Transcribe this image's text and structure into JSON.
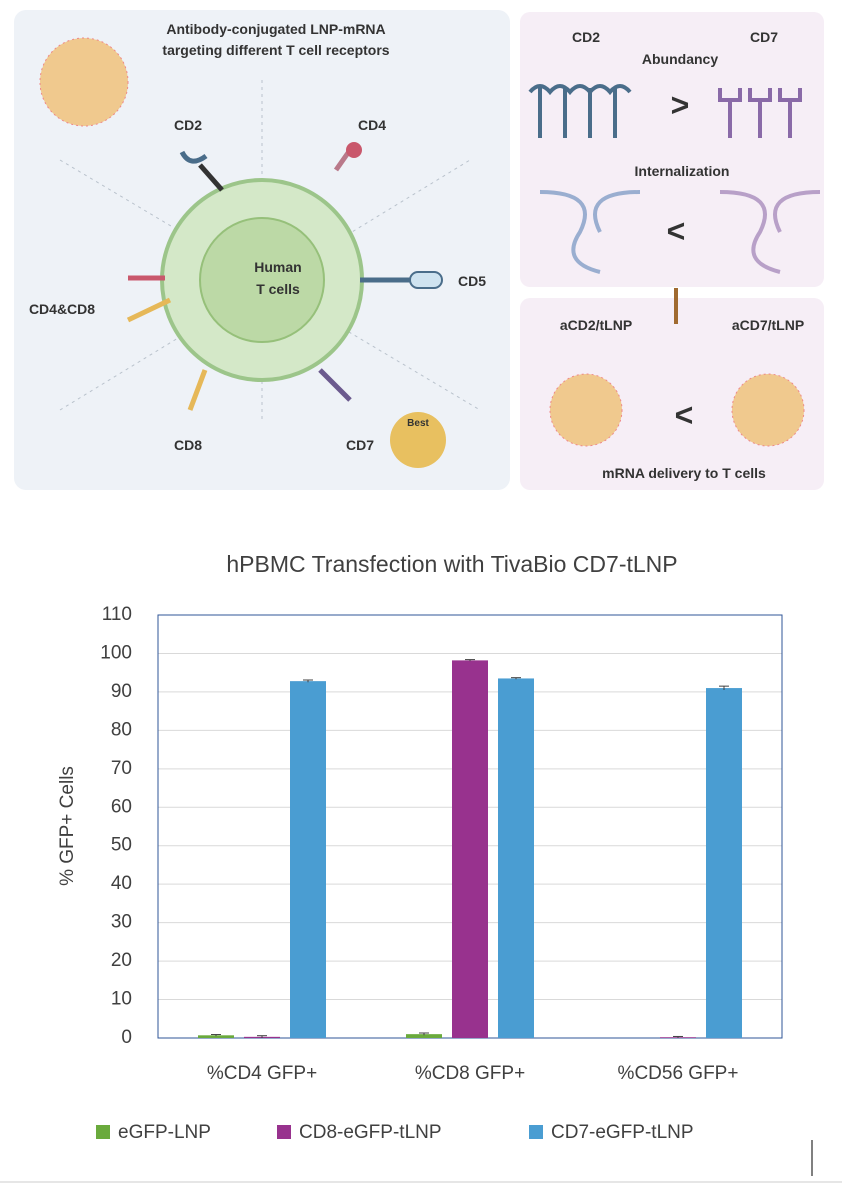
{
  "diagram": {
    "left": {
      "title_lines": [
        "Antibody-conjugated LNP-mRNA",
        "targeting different T cell receptors"
      ],
      "cell_lines": [
        "Human",
        "T cells"
      ],
      "receptors": [
        "CD2",
        "CD4",
        "CD5",
        "CD4&CD8",
        "CD8",
        "CD7"
      ],
      "badge": "Best"
    },
    "right": {
      "top_left": "CD2",
      "top_right": "CD7",
      "abundancy": "Abundancy",
      "greater": ">",
      "internalization": "Internalization",
      "less_1": "<",
      "lnp_left": "aCD2/tLNP",
      "lnp_right": "aCD7/tLNP",
      "less_2": "<",
      "delivery": "mRNA delivery to T cells"
    }
  },
  "chart_data": {
    "type": "bar",
    "title": "hPBMC Transfection with TivaBio CD7-tLNP",
    "y_label": "% GFP+ Cells",
    "categories": [
      "%CD4 GFP+",
      "%CD8 GFP+",
      "%CD56 GFP+"
    ],
    "series": [
      {
        "name": "eGFP-LNP",
        "color": "#6aaa3c",
        "values": [
          0.7,
          1.0,
          0
        ],
        "errors": [
          0.2,
          0.3,
          0
        ]
      },
      {
        "name": "CD8-eGFP-tLNP",
        "color": "#98328e",
        "values": [
          0.3,
          98.2,
          0.2
        ],
        "errors": [
          0.3,
          0.2,
          0.2
        ]
      },
      {
        "name": "CD7-eGFP-tLNP",
        "color": "#4a9dd2",
        "values": [
          92.8,
          93.5,
          91.0
        ],
        "errors": [
          0.3,
          0.2,
          0.5
        ]
      }
    ],
    "ylim": [
      0,
      110
    ],
    "yticks": [
      0,
      10,
      20,
      30,
      40,
      50,
      60,
      70,
      80,
      90,
      100,
      110
    ],
    "grid": true
  }
}
